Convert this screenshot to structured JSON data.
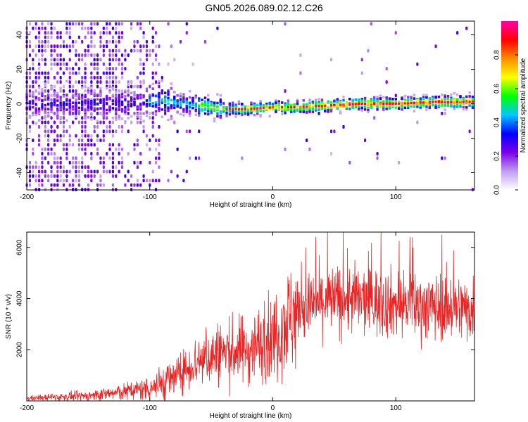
{
  "title": "GN05.2026.089.02.12.C26",
  "chart_data": [
    {
      "type": "heatmap",
      "name": "spectrogram",
      "xlabel": "Height of straight line (km)",
      "ylabel": "Frequency (Hz)",
      "xlim": [
        -200,
        164
      ],
      "ylim": [
        -50,
        48
      ],
      "xticks": [
        -200,
        -100,
        0,
        100
      ],
      "yticks": [
        -40,
        -20,
        0,
        20,
        40
      ],
      "ridge": [
        {
          "x": -200,
          "f": 0
        },
        {
          "x": -120,
          "f": 0
        },
        {
          "x": -90,
          "f": 2
        },
        {
          "x": -70,
          "f": 0
        },
        {
          "x": -50,
          "f": -2
        },
        {
          "x": -40,
          "f": -3
        },
        {
          "x": -20,
          "f": -3
        },
        {
          "x": 0,
          "f": -2
        },
        {
          "x": 20,
          "f": -2
        },
        {
          "x": 45,
          "f": -1
        },
        {
          "x": 70,
          "f": 0
        },
        {
          "x": 100,
          "f": 0
        },
        {
          "x": 130,
          "f": 1
        },
        {
          "x": 164,
          "f": 1
        }
      ],
      "colorbar": {
        "label": "Normalized spectral amplitude",
        "range": [
          0,
          1
        ],
        "ticks": [
          "0.0",
          "0.2",
          "0.4",
          "0.6",
          "0.8"
        ],
        "colors": [
          "#ffffff",
          "#c09cf0",
          "#7a00e6",
          "#0000ff",
          "#00c8ff",
          "#00ff00",
          "#ffff00",
          "#ff8c00",
          "#ff0000",
          "#ff00aa"
        ]
      }
    },
    {
      "type": "line",
      "name": "snr",
      "xlabel": "Height of straight line (km)",
      "ylabel": "SNR (10 * v/v)",
      "xlim": [
        -200,
        164
      ],
      "ylim": [
        0,
        6600
      ],
      "xticks": [
        -200,
        -100,
        0,
        100
      ],
      "yticks": [
        2000,
        4000,
        6000
      ],
      "color": "#ee2222",
      "envelope": [
        {
          "x": -200,
          "y": 100
        },
        {
          "x": -150,
          "y": 200
        },
        {
          "x": -120,
          "y": 350
        },
        {
          "x": -100,
          "y": 500
        },
        {
          "x": -80,
          "y": 900
        },
        {
          "x": -60,
          "y": 1600
        },
        {
          "x": -40,
          "y": 1900
        },
        {
          "x": -20,
          "y": 2000
        },
        {
          "x": 0,
          "y": 2500
        },
        {
          "x": 10,
          "y": 3100
        },
        {
          "x": 20,
          "y": 3500
        },
        {
          "x": 40,
          "y": 3900
        },
        {
          "x": 60,
          "y": 4000
        },
        {
          "x": 80,
          "y": 3900
        },
        {
          "x": 100,
          "y": 3800
        },
        {
          "x": 130,
          "y": 3700
        },
        {
          "x": 164,
          "y": 3600
        }
      ]
    }
  ]
}
